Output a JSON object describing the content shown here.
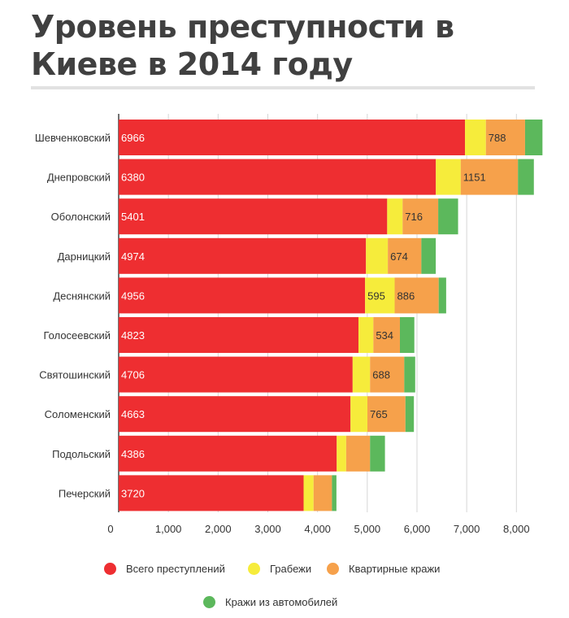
{
  "title": "Уровень преступности в Киеве в 2014 году",
  "chart_data": {
    "type": "bar",
    "orientation": "horizontal",
    "stacked": true,
    "categories": [
      "Шевченковский",
      "Днепровский",
      "Оболонский",
      "Дарницкий",
      "Деснянский",
      "Голосеевский",
      "Святошинский",
      "Соломенский",
      "Подольский",
      "Печерский"
    ],
    "series": [
      {
        "name": "Всего преступлений",
        "color": "#ee2e31",
        "values": [
          6966,
          6380,
          5401,
          4974,
          4956,
          4823,
          4706,
          4663,
          4386,
          3720
        ],
        "labels": [
          "6966",
          "6380",
          "5401",
          "4974",
          "4956",
          "4823",
          "4706",
          "4663",
          "4386",
          "3720"
        ]
      },
      {
        "name": "Грабежи",
        "color": "#f6ec3b",
        "values": [
          420,
          500,
          310,
          440,
          595,
          300,
          350,
          340,
          190,
          200
        ],
        "labels": [
          "",
          "",
          "",
          "",
          "595",
          "",
          "",
          "",
          "",
          ""
        ]
      },
      {
        "name": "Квартирные кражи",
        "color": "#f6a14b",
        "values": [
          788,
          1151,
          716,
          674,
          886,
          534,
          688,
          765,
          480,
          370
        ],
        "labels": [
          "788",
          "1151",
          "716",
          "674",
          "886",
          "534",
          "688",
          "765",
          "",
          ""
        ]
      },
      {
        "name": "Кражи из автомобилей",
        "color": "#5cb85c",
        "values": [
          350,
          320,
          400,
          290,
          150,
          290,
          220,
          170,
          300,
          90
        ],
        "labels": [
          "",
          "",
          "",
          "",
          "",
          "",
          "",
          "",
          "",
          ""
        ]
      }
    ],
    "x_ticks": [
      "0",
      "1,000",
      "2,000",
      "3,000",
      "4,000",
      "5,000",
      "6,000",
      "7,000",
      "8,000"
    ],
    "x_tick_values": [
      0,
      1000,
      2000,
      3000,
      4000,
      5000,
      6000,
      7000,
      8000
    ],
    "xlim": [
      0,
      8600
    ],
    "grid": true,
    "legend_position": "bottom"
  }
}
